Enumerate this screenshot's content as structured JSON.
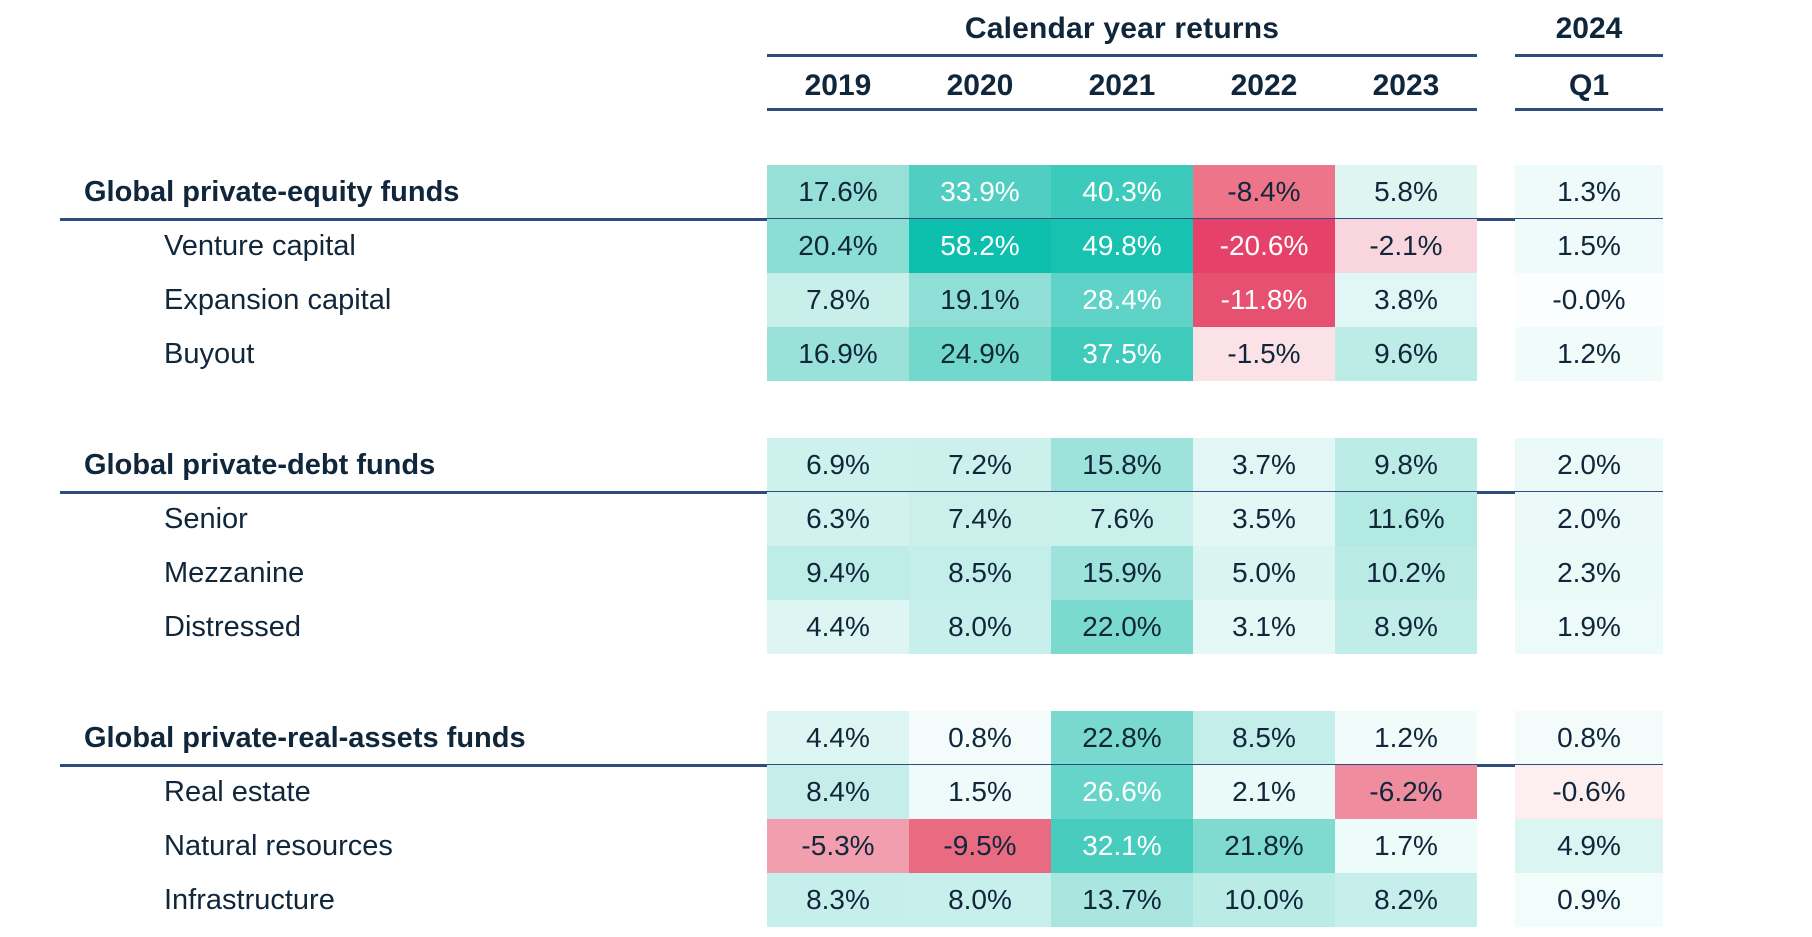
{
  "header": {
    "group_title": "Calendar year returns",
    "right_title": "2024",
    "years": [
      "2019",
      "2020",
      "2021",
      "2022",
      "2023"
    ],
    "quarter_label": "Q1"
  },
  "colors": {
    "text": "#10263A",
    "rule": "#2E4C7C",
    "light_text": "#FFFFFF",
    "max_positive_teal": "#0DC0AE",
    "max_negative_red": "#E54169"
  },
  "blocks": [
    {
      "rows": [
        {
          "label": "Global private-equity funds",
          "group": true,
          "cells": [
            {
              "v": "17.6%",
              "bg": "#97E0D8",
              "fg": "dark"
            },
            {
              "v": "33.9%",
              "bg": "#4FCEC1",
              "fg": "light"
            },
            {
              "v": "40.3%",
              "bg": "#3BCABB",
              "fg": "light"
            },
            {
              "v": "-8.4%",
              "bg": "#ED7489",
              "fg": "dark"
            },
            {
              "v": "5.8%",
              "bg": "#DFF5F2",
              "fg": "dark"
            },
            {
              "v": "1.3%",
              "bg": "#EFFBFA",
              "fg": "dark"
            }
          ]
        },
        {
          "label": "Venture capital",
          "group": false,
          "cells": [
            {
              "v": "20.4%",
              "bg": "#8BDED5",
              "fg": "dark"
            },
            {
              "v": "58.2%",
              "bg": "#0DC0AE",
              "fg": "light"
            },
            {
              "v": "49.8%",
              "bg": "#17C2B1",
              "fg": "light"
            },
            {
              "v": "-20.6%",
              "bg": "#E54169",
              "fg": "light"
            },
            {
              "v": "-2.1%",
              "bg": "#F9D6DD",
              "fg": "dark"
            },
            {
              "v": "1.5%",
              "bg": "#EEFBFA",
              "fg": "dark"
            }
          ]
        },
        {
          "label": "Expansion capital",
          "group": false,
          "cells": [
            {
              "v": "7.8%",
              "bg": "#C9EFEB",
              "fg": "dark"
            },
            {
              "v": "19.1%",
              "bg": "#90DFD6",
              "fg": "dark"
            },
            {
              "v": "28.4%",
              "bg": "#5FD3C7",
              "fg": "light"
            },
            {
              "v": "-11.8%",
              "bg": "#E75171",
              "fg": "light"
            },
            {
              "v": "3.8%",
              "bg": "#E1F7F5",
              "fg": "dark"
            },
            {
              "v": "-0.0%",
              "bg": "#FBFEFE",
              "fg": "dark"
            }
          ]
        },
        {
          "label": "Buyout",
          "group": false,
          "cells": [
            {
              "v": "16.9%",
              "bg": "#9AE1D9",
              "fg": "dark"
            },
            {
              "v": "24.9%",
              "bg": "#72D8CC",
              "fg": "dark"
            },
            {
              "v": "37.5%",
              "bg": "#3FCBBC",
              "fg": "light"
            },
            {
              "v": "-1.5%",
              "bg": "#FBE2E7",
              "fg": "dark"
            },
            {
              "v": "9.6%",
              "bg": "#BDECE6",
              "fg": "dark"
            },
            {
              "v": "1.2%",
              "bg": "#F0FBFA",
              "fg": "dark"
            }
          ]
        }
      ]
    },
    {
      "rows": [
        {
          "label": "Global private-debt funds",
          "group": true,
          "cells": [
            {
              "v": "6.9%",
              "bg": "#CDF1ED",
              "fg": "dark"
            },
            {
              "v": "7.2%",
              "bg": "#CCF0EC",
              "fg": "dark"
            },
            {
              "v": "15.8%",
              "bg": "#9EE3DB",
              "fg": "dark"
            },
            {
              "v": "3.7%",
              "bg": "#E2F7F5",
              "fg": "dark"
            },
            {
              "v": "9.8%",
              "bg": "#BCECE6",
              "fg": "dark"
            },
            {
              "v": "2.0%",
              "bg": "#EBFAF8",
              "fg": "dark"
            }
          ]
        },
        {
          "label": "Senior",
          "group": false,
          "cells": [
            {
              "v": "6.3%",
              "bg": "#D1F2EE",
              "fg": "dark"
            },
            {
              "v": "7.4%",
              "bg": "#CBF0EC",
              "fg": "dark"
            },
            {
              "v": "7.6%",
              "bg": "#CAF0EC",
              "fg": "dark"
            },
            {
              "v": "3.5%",
              "bg": "#E3F7F5",
              "fg": "dark"
            },
            {
              "v": "11.6%",
              "bg": "#B2E9E2",
              "fg": "dark"
            },
            {
              "v": "2.0%",
              "bg": "#EBFAF8",
              "fg": "dark"
            }
          ]
        },
        {
          "label": "Mezzanine",
          "group": false,
          "cells": [
            {
              "v": "9.4%",
              "bg": "#BEECE7",
              "fg": "dark"
            },
            {
              "v": "8.5%",
              "bg": "#C4EEEA",
              "fg": "dark"
            },
            {
              "v": "15.9%",
              "bg": "#9DE3DB",
              "fg": "dark"
            },
            {
              "v": "5.0%",
              "bg": "#D9F4F1",
              "fg": "dark"
            },
            {
              "v": "10.2%",
              "bg": "#B9EBE4",
              "fg": "dark"
            },
            {
              "v": "2.3%",
              "bg": "#E9FAF7",
              "fg": "dark"
            }
          ]
        },
        {
          "label": "Distressed",
          "group": false,
          "cells": [
            {
              "v": "4.4%",
              "bg": "#DDF6F3",
              "fg": "dark"
            },
            {
              "v": "8.0%",
              "bg": "#C7EFEB",
              "fg": "dark"
            },
            {
              "v": "22.0%",
              "bg": "#7BDACE",
              "fg": "dark"
            },
            {
              "v": "3.1%",
              "bg": "#E5F8F6",
              "fg": "dark"
            },
            {
              "v": "8.9%",
              "bg": "#C1EDE9",
              "fg": "dark"
            },
            {
              "v": "1.9%",
              "bg": "#ECFAF9",
              "fg": "dark"
            }
          ]
        }
      ]
    },
    {
      "rows": [
        {
          "label": "Global private-real-assets funds",
          "group": true,
          "cells": [
            {
              "v": "4.4%",
              "bg": "#DDF6F3",
              "fg": "dark"
            },
            {
              "v": "0.8%",
              "bg": "#F4FCFB",
              "fg": "dark"
            },
            {
              "v": "22.8%",
              "bg": "#79D9CE",
              "fg": "dark"
            },
            {
              "v": "8.5%",
              "bg": "#C4EEEA",
              "fg": "dark"
            },
            {
              "v": "1.2%",
              "bg": "#F0FBFA",
              "fg": "dark"
            },
            {
              "v": "0.8%",
              "bg": "#F4FCFB",
              "fg": "dark"
            }
          ]
        },
        {
          "label": "Real estate",
          "group": false,
          "cells": [
            {
              "v": "8.4%",
              "bg": "#C5EEEA",
              "fg": "dark"
            },
            {
              "v": "1.5%",
              "bg": "#EEFBFA",
              "fg": "dark"
            },
            {
              "v": "26.6%",
              "bg": "#66D5C9",
              "fg": "light"
            },
            {
              "v": "2.1%",
              "bg": "#EAFAF8",
              "fg": "dark"
            },
            {
              "v": "-6.2%",
              "bg": "#EF8D9F",
              "fg": "dark"
            },
            {
              "v": "-0.6%",
              "bg": "#FDEEF0",
              "fg": "dark"
            }
          ]
        },
        {
          "label": "Natural resources",
          "group": false,
          "cells": [
            {
              "v": "-5.3%",
              "bg": "#F19FAE",
              "fg": "dark"
            },
            {
              "v": "-9.5%",
              "bg": "#E96B82",
              "fg": "dark"
            },
            {
              "v": "32.1%",
              "bg": "#48CCBE",
              "fg": "light"
            },
            {
              "v": "21.8%",
              "bg": "#7FDBD0",
              "fg": "dark"
            },
            {
              "v": "1.7%",
              "bg": "#EDFBF9",
              "fg": "dark"
            },
            {
              "v": "4.9%",
              "bg": "#DAF5F2",
              "fg": "dark"
            }
          ]
        },
        {
          "label": "Infrastructure",
          "group": false,
          "cells": [
            {
              "v": "8.3%",
              "bg": "#C6EEEA",
              "fg": "dark"
            },
            {
              "v": "8.0%",
              "bg": "#C7EFEB",
              "fg": "dark"
            },
            {
              "v": "13.7%",
              "bg": "#A9E6DF",
              "fg": "dark"
            },
            {
              "v": "10.0%",
              "bg": "#BBEBE5",
              "fg": "dark"
            },
            {
              "v": "8.2%",
              "bg": "#C6EEEB",
              "fg": "dark"
            },
            {
              "v": "0.9%",
              "bg": "#F2FCFB",
              "fg": "dark"
            }
          ]
        }
      ]
    }
  ],
  "chart_data": {
    "type": "heatmap",
    "title": "Calendar year returns",
    "columns": [
      "2019",
      "2020",
      "2021",
      "2022",
      "2023",
      "2024 Q1"
    ],
    "series": [
      {
        "name": "Global private-equity funds",
        "group": true,
        "values": [
          17.6,
          33.9,
          40.3,
          -8.4,
          5.8,
          1.3
        ]
      },
      {
        "name": "Venture capital",
        "group": false,
        "values": [
          20.4,
          58.2,
          49.8,
          -20.6,
          -2.1,
          1.5
        ]
      },
      {
        "name": "Expansion capital",
        "group": false,
        "values": [
          7.8,
          19.1,
          28.4,
          -11.8,
          3.8,
          -0.0
        ]
      },
      {
        "name": "Buyout",
        "group": false,
        "values": [
          16.9,
          24.9,
          37.5,
          -1.5,
          9.6,
          1.2
        ]
      },
      {
        "name": "Global private-debt funds",
        "group": true,
        "values": [
          6.9,
          7.2,
          15.8,
          3.7,
          9.8,
          2.0
        ]
      },
      {
        "name": "Senior",
        "group": false,
        "values": [
          6.3,
          7.4,
          7.6,
          3.5,
          11.6,
          2.0
        ]
      },
      {
        "name": "Mezzanine",
        "group": false,
        "values": [
          9.4,
          8.5,
          15.9,
          5.0,
          10.2,
          2.3
        ]
      },
      {
        "name": "Distressed",
        "group": false,
        "values": [
          4.4,
          8.0,
          22.0,
          3.1,
          8.9,
          1.9
        ]
      },
      {
        "name": "Global private-real-assets funds",
        "group": true,
        "values": [
          4.4,
          0.8,
          22.8,
          8.5,
          1.2,
          0.8
        ]
      },
      {
        "name": "Real estate",
        "group": false,
        "values": [
          8.4,
          1.5,
          26.6,
          2.1,
          -6.2,
          -0.6
        ]
      },
      {
        "name": "Natural resources",
        "group": false,
        "values": [
          -5.3,
          -9.5,
          32.1,
          21.8,
          1.7,
          4.9
        ]
      },
      {
        "name": "Infrastructure",
        "group": false,
        "values": [
          8.3,
          8.0,
          13.7,
          10.0,
          8.2,
          0.9
        ]
      }
    ],
    "color_scale": "diverging red (negative) to teal (positive), white at 0",
    "legend": "none",
    "grid": false
  }
}
